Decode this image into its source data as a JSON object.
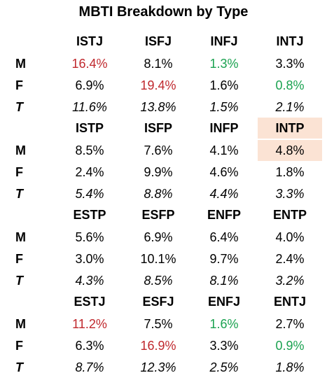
{
  "title": "MBTI Breakdown by Type",
  "chart_data": {
    "type": "table",
    "title": "MBTI Breakdown by Type",
    "row_labels": [
      "M",
      "F",
      "T"
    ],
    "colors": {
      "high": "#c0282d",
      "low": "#1aa250",
      "shaded": "#fbe3d4"
    },
    "groups": [
      {
        "types": [
          "ISTJ",
          "ISFJ",
          "INFJ",
          "INTJ"
        ],
        "M": [
          "16.4%",
          "8.1%",
          "1.3%",
          "3.3%"
        ],
        "F": [
          "6.9%",
          "19.4%",
          "1.6%",
          "0.8%"
        ],
        "T": [
          "11.6%",
          "13.8%",
          "1.5%",
          "2.1%"
        ],
        "M_hl": [
          "high",
          "",
          "low",
          ""
        ],
        "F_hl": [
          "",
          "high",
          "",
          "low"
        ],
        "T_hl": [
          "",
          "",
          "",
          ""
        ]
      },
      {
        "types": [
          "ISTP",
          "ISFP",
          "INFP",
          "INTP"
        ],
        "M": [
          "8.5%",
          "7.6%",
          "4.1%",
          "4.8%"
        ],
        "F": [
          "2.4%",
          "9.9%",
          "4.6%",
          "1.8%"
        ],
        "T": [
          "5.4%",
          "8.8%",
          "4.4%",
          "3.3%"
        ],
        "M_hl": [
          "",
          "",
          "",
          "shaded"
        ],
        "F_hl": [
          "",
          "",
          "",
          ""
        ],
        "T_hl": [
          "",
          "",
          "",
          ""
        ],
        "header_hl": [
          "",
          "",
          "",
          "shaded"
        ]
      },
      {
        "types": [
          "ESTP",
          "ESFP",
          "ENFP",
          "ENTP"
        ],
        "M": [
          "5.6%",
          "6.9%",
          "6.4%",
          "4.0%"
        ],
        "F": [
          "3.0%",
          "10.1%",
          "9.7%",
          "2.4%"
        ],
        "T": [
          "4.3%",
          "8.5%",
          "8.1%",
          "3.2%"
        ],
        "M_hl": [
          "",
          "",
          "",
          ""
        ],
        "F_hl": [
          "",
          "",
          "",
          ""
        ],
        "T_hl": [
          "",
          "",
          "",
          ""
        ]
      },
      {
        "types": [
          "ESTJ",
          "ESFJ",
          "ENFJ",
          "ENTJ"
        ],
        "M": [
          "11.2%",
          "7.5%",
          "1.6%",
          "2.7%"
        ],
        "F": [
          "6.3%",
          "16.9%",
          "3.3%",
          "0.9%"
        ],
        "T": [
          "8.7%",
          "12.3%",
          "2.5%",
          "1.8%"
        ],
        "M_hl": [
          "high",
          "",
          "low",
          ""
        ],
        "F_hl": [
          "",
          "high",
          "",
          "low"
        ],
        "T_hl": [
          "",
          "",
          "",
          ""
        ]
      }
    ]
  }
}
